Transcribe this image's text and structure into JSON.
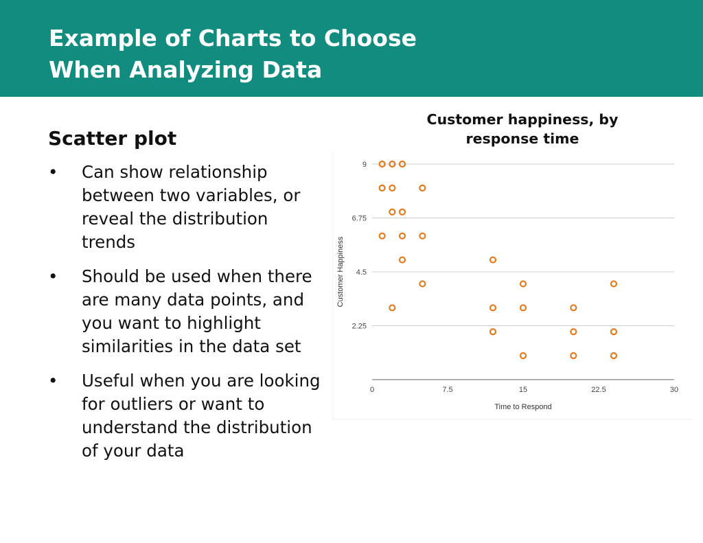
{
  "header": {
    "title_line1": "Example of Charts to Choose",
    "title_line2": "When Analyzing Data"
  },
  "section": {
    "heading": "Scatter plot",
    "bullets": [
      "Can show relationship between two variables, or reveal the distribution trends",
      "Should be used when there are many data points, and you want to highlight similarities in the data set",
      "Useful when you are looking for outliers or want to understand the distribution of your data"
    ]
  },
  "colors": {
    "header_bg": "#138c80",
    "marker": "#e07b22",
    "grid": "#cccccc"
  },
  "chart_data": {
    "type": "scatter",
    "title": "Customer happiness, by response time",
    "xlabel": "Time to Respond",
    "ylabel": "Customer Happiness",
    "xlim": [
      0,
      30
    ],
    "ylim": [
      0,
      9
    ],
    "xticks": [
      "0",
      "7.5",
      "15",
      "22.5",
      "30"
    ],
    "yticks": [
      "2.25",
      "4.5",
      "6.75",
      "9"
    ],
    "grid": true,
    "legend": "none",
    "points": [
      {
        "x": 1,
        "y": 9
      },
      {
        "x": 2,
        "y": 9
      },
      {
        "x": 3,
        "y": 9
      },
      {
        "x": 1,
        "y": 8
      },
      {
        "x": 2,
        "y": 8
      },
      {
        "x": 5,
        "y": 8
      },
      {
        "x": 2,
        "y": 7
      },
      {
        "x": 3,
        "y": 7
      },
      {
        "x": 1,
        "y": 6
      },
      {
        "x": 3,
        "y": 6
      },
      {
        "x": 5,
        "y": 6
      },
      {
        "x": 3,
        "y": 5
      },
      {
        "x": 12,
        "y": 5
      },
      {
        "x": 5,
        "y": 4
      },
      {
        "x": 15,
        "y": 4
      },
      {
        "x": 24,
        "y": 4
      },
      {
        "x": 2,
        "y": 3
      },
      {
        "x": 12,
        "y": 3
      },
      {
        "x": 15,
        "y": 3
      },
      {
        "x": 20,
        "y": 3
      },
      {
        "x": 12,
        "y": 2
      },
      {
        "x": 20,
        "y": 2
      },
      {
        "x": 24,
        "y": 2
      },
      {
        "x": 15,
        "y": 1
      },
      {
        "x": 20,
        "y": 1
      },
      {
        "x": 24,
        "y": 1
      }
    ]
  }
}
